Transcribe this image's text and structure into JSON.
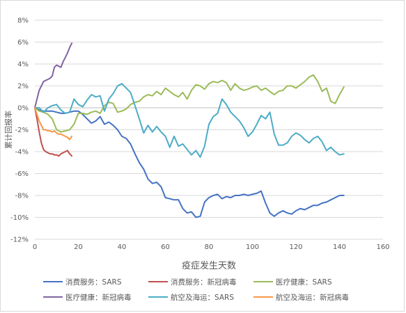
{
  "chart_data": {
    "type": "line",
    "xlabel": "疫症发生天数",
    "ylabel": "累计回报率",
    "xlim": [
      0,
      160
    ],
    "ylim": [
      -12,
      8
    ],
    "x_ticks": [
      0,
      20,
      40,
      60,
      80,
      100,
      120,
      140,
      160
    ],
    "y_ticks": [
      8,
      6,
      4,
      2,
      0,
      -2,
      -4,
      -6,
      -8,
      -10,
      -12
    ],
    "y_tick_labels": [
      "8%",
      "6%",
      "4%",
      "2%",
      "0%",
      "-2%",
      "-4%",
      "-6%",
      "-8%",
      "-10%",
      "-12%"
    ],
    "grid": "horizontal",
    "legend_position": "bottom",
    "series": [
      {
        "name": "消费服务：SARS",
        "color": "#4472c4",
        "x": [
          0,
          2,
          4,
          6,
          8,
          10,
          12,
          14,
          16,
          18,
          20,
          22,
          24,
          26,
          28,
          30,
          32,
          34,
          36,
          38,
          40,
          42,
          44,
          46,
          48,
          50,
          52,
          54,
          56,
          58,
          60,
          62,
          64,
          66,
          68,
          70,
          72,
          74,
          76,
          78,
          80,
          82,
          84,
          86,
          88,
          90,
          92,
          94,
          96,
          98,
          100,
          102,
          104,
          106,
          108,
          110,
          112,
          114,
          116,
          118,
          120,
          122,
          124,
          126,
          128,
          130,
          132,
          134,
          136,
          138,
          140,
          142
        ],
        "y": [
          0,
          -0.2,
          -0.3,
          -0.3,
          -0.3,
          -0.4,
          -0.5,
          -0.5,
          -0.4,
          -0.3,
          -0.3,
          -0.6,
          -1.0,
          -1.4,
          -1.2,
          -0.8,
          -1.5,
          -1.3,
          -1.6,
          -2.0,
          -2.6,
          -2.8,
          -3.3,
          -4.2,
          -5.0,
          -5.6,
          -6.5,
          -6.9,
          -6.8,
          -7.2,
          -8.2,
          -8.3,
          -8.4,
          -8.4,
          -9.2,
          -9.6,
          -9.5,
          -10.0,
          -9.9,
          -8.6,
          -8.2,
          -8.0,
          -7.9,
          -8.3,
          -8.1,
          -8.2,
          -8.0,
          -8.0,
          -7.9,
          -8.0,
          -7.9,
          -7.8,
          -7.6,
          -8.7,
          -9.6,
          -9.9,
          -9.6,
          -9.4,
          -9.6,
          -9.7,
          -9.4,
          -9.2,
          -9.3,
          -9.1,
          -8.9,
          -8.9,
          -8.7,
          -8.6,
          -8.4,
          -8.2,
          -8.0,
          -8.0
        ]
      },
      {
        "name": "消费服务：新冠病毒",
        "color": "#c0504d",
        "x": [
          0,
          1,
          2,
          3,
          4,
          5,
          6,
          7,
          8,
          9,
          10,
          11,
          12,
          13,
          14,
          15,
          16,
          17
        ],
        "y": [
          0,
          -1.0,
          -2.2,
          -3.2,
          -3.8,
          -4.0,
          -4.1,
          -4.2,
          -4.2,
          -4.3,
          -4.3,
          -4.4,
          -4.2,
          -4.1,
          -4.0,
          -3.9,
          -4.2,
          -4.4
        ]
      },
      {
        "name": "医疗健康：SARS",
        "color": "#9bbb59",
        "x": [
          0,
          2,
          4,
          6,
          8,
          10,
          12,
          14,
          16,
          18,
          20,
          22,
          24,
          26,
          28,
          30,
          32,
          34,
          36,
          38,
          40,
          42,
          44,
          46,
          48,
          50,
          52,
          54,
          56,
          58,
          60,
          62,
          64,
          66,
          68,
          70,
          72,
          74,
          76,
          78,
          80,
          82,
          84,
          86,
          88,
          90,
          92,
          94,
          96,
          98,
          100,
          102,
          104,
          106,
          108,
          110,
          112,
          114,
          116,
          118,
          120,
          122,
          124,
          126,
          128,
          130,
          132,
          134,
          136,
          138,
          140,
          142
        ],
        "y": [
          0,
          -0.3,
          -0.4,
          -0.6,
          -1.0,
          -2.0,
          -2.2,
          -2.1,
          -2.0,
          -1.5,
          -0.5,
          -0.5,
          -0.6,
          -0.4,
          -0.3,
          -0.5,
          0.2,
          0.5,
          0.4,
          -0.4,
          -0.3,
          -0.1,
          0.3,
          0.5,
          0.6,
          1.0,
          1.2,
          1.1,
          1.5,
          1.2,
          1.8,
          1.5,
          1.2,
          1.0,
          1.4,
          0.8,
          1.6,
          2.1,
          2.0,
          1.7,
          2.2,
          2.4,
          2.3,
          2.5,
          2.3,
          1.6,
          2.2,
          1.8,
          1.6,
          1.7,
          1.9,
          2.0,
          1.6,
          1.8,
          1.5,
          1.2,
          1.5,
          1.6,
          2.0,
          2.0,
          1.8,
          2.1,
          2.4,
          2.8,
          3.0,
          2.4,
          1.5,
          1.8,
          0.6,
          0.4,
          1.2,
          1.9
        ]
      },
      {
        "name": "医疗健康：新冠病毒",
        "color": "#8064a2",
        "x": [
          0,
          1,
          2,
          3,
          4,
          5,
          6,
          7,
          8,
          9,
          10,
          11,
          12,
          13,
          14,
          15,
          16,
          17
        ],
        "y": [
          0,
          0.8,
          1.6,
          2.0,
          2.4,
          2.5,
          2.6,
          2.7,
          2.9,
          3.7,
          3.9,
          3.8,
          3.7,
          4.2,
          4.6,
          5.0,
          5.5,
          5.9
        ]
      },
      {
        "name": "航空及海运：SARS",
        "color": "#4bacc6",
        "x": [
          0,
          2,
          4,
          6,
          8,
          10,
          12,
          14,
          16,
          18,
          20,
          22,
          24,
          26,
          28,
          30,
          32,
          34,
          36,
          38,
          40,
          42,
          44,
          46,
          48,
          50,
          52,
          54,
          56,
          58,
          60,
          62,
          64,
          66,
          68,
          70,
          72,
          74,
          76,
          78,
          80,
          82,
          84,
          86,
          88,
          90,
          92,
          94,
          96,
          98,
          100,
          102,
          104,
          106,
          108,
          110,
          112,
          114,
          116,
          118,
          120,
          122,
          124,
          126,
          128,
          130,
          132,
          134,
          136,
          138,
          140,
          142
        ],
        "y": [
          0,
          0,
          -0.4,
          0,
          0.2,
          0.3,
          -0.2,
          -0.5,
          -0.4,
          0.8,
          0.3,
          0.1,
          0.7,
          1.2,
          1.0,
          1.1,
          -0.3,
          0.8,
          1.3,
          2.0,
          2.2,
          1.8,
          1.4,
          0.2,
          -1.0,
          -2.3,
          -1.6,
          -2.2,
          -1.7,
          -2.2,
          -2.6,
          -3.6,
          -2.6,
          -3.5,
          -3.3,
          -3.8,
          -4.3,
          -3.9,
          -4.5,
          -3.5,
          -1.5,
          -0.8,
          -0.5,
          0.8,
          0.3,
          -0.4,
          -0.8,
          -1.2,
          -1.8,
          -2.6,
          -2.2,
          -1.5,
          -0.7,
          -1.0,
          -0.4,
          -2.4,
          -3.4,
          -3.4,
          -3.2,
          -2.6,
          -2.3,
          -2.5,
          -2.9,
          -3.2,
          -2.8,
          -2.6,
          -3.1,
          -3.9,
          -3.6,
          -4.0,
          -4.3,
          -4.2
        ]
      },
      {
        "name": "航空及海运：新冠病毒",
        "color": "#f79646",
        "x": [
          0,
          1,
          2,
          3,
          4,
          5,
          6,
          7,
          8,
          9,
          10,
          11,
          12,
          13,
          14,
          15,
          16,
          17
        ],
        "y": [
          0,
          -0.6,
          -1.2,
          -1.6,
          -2.0,
          -2.0,
          -2.1,
          -2.1,
          -2.2,
          -2.1,
          -2.3,
          -2.4,
          -2.4,
          -2.5,
          -2.6,
          -2.7,
          -2.9,
          -2.6
        ]
      }
    ]
  }
}
